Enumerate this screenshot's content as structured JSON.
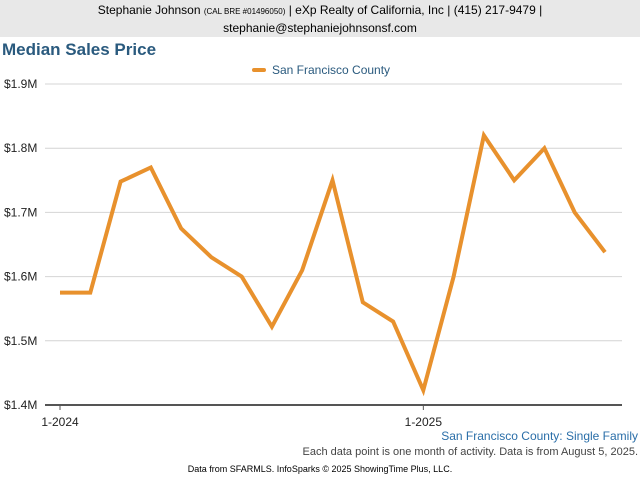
{
  "header": {
    "line1_name": "Stephanie Johnson",
    "line1_license": "(CAL BRE #01496050)",
    "line1_rest": "| eXp Realty of California, Inc | (415) 217-9479 |",
    "line2": "stephanie@stephaniejohnsonsf.com"
  },
  "chart_data": {
    "type": "line",
    "title": "Median Sales Price",
    "xlabel": "",
    "ylabel": "",
    "ylim": [
      1400000,
      1900000
    ],
    "yticks": [
      "$1.4M",
      "$1.5M",
      "$1.6M",
      "$1.7M",
      "$1.8M",
      "$1.9M"
    ],
    "ytick_values": [
      1400000,
      1500000,
      1600000,
      1700000,
      1800000,
      1900000
    ],
    "x": [
      "1-2024",
      "2-2024",
      "3-2024",
      "4-2024",
      "5-2024",
      "6-2024",
      "7-2024",
      "8-2024",
      "9-2024",
      "10-2024",
      "11-2024",
      "12-2024",
      "1-2025",
      "2-2025",
      "3-2025",
      "4-2025",
      "5-2025",
      "6-2025",
      "7-2025"
    ],
    "xticks": [
      {
        "label": "1-2024",
        "index": 0
      },
      {
        "label": "1-2025",
        "index": 12
      }
    ],
    "series": [
      {
        "name": "San Francisco County",
        "color": "#e8912d",
        "values": [
          1575000,
          1575000,
          1748000,
          1770000,
          1675000,
          1630000,
          1600000,
          1522000,
          1610000,
          1750000,
          1560000,
          1530000,
          1423000,
          1600000,
          1820000,
          1750000,
          1800000,
          1700000,
          1638000
        ]
      }
    ],
    "grid": true,
    "legend": "top-center"
  },
  "notes": {
    "series_label": "San Francisco County: Single Family",
    "footnote": "Each data point is one month of activity. Data is from August 5, 2025.",
    "credit": "Data from SFARMLS. InfoSparks © 2025 ShowingTime Plus, LLC."
  }
}
